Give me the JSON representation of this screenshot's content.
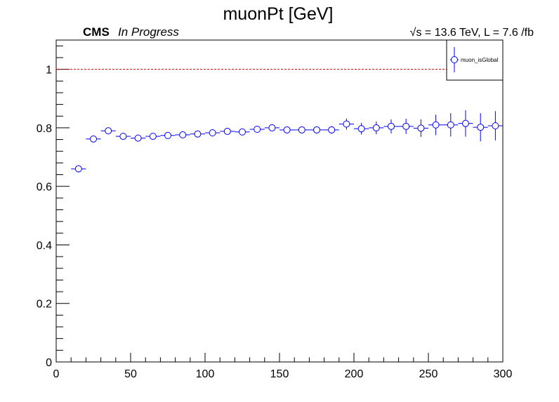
{
  "header": {
    "title": "muonPt [GeV]",
    "experiment": "CMS",
    "status": "In Progress",
    "lumi_sqrt": "√s",
    "lumi_rest": " = 13.6 TeV, L = 7.6 /fb"
  },
  "chart_data": {
    "type": "scatter",
    "title": "muonPt [GeV]",
    "xlabel": "",
    "ylabel": "",
    "xlim": [
      0,
      300
    ],
    "ylim": [
      0,
      1.1
    ],
    "x_ticks": [
      0,
      50,
      100,
      150,
      200,
      250,
      300
    ],
    "y_ticks": [
      0,
      0.2,
      0.4,
      0.6,
      0.8,
      1
    ],
    "y_tick_labels": [
      "0",
      "0.2",
      "0.4",
      "0.6",
      "0.8",
      "1"
    ],
    "grid": false,
    "reference_line": {
      "y": 1.0,
      "color": "#cc0000",
      "style": "dashed"
    },
    "legend_position": "top-right",
    "series": [
      {
        "name": "muon_isGlobal",
        "color": "#0000ff",
        "marker": "open-circle",
        "bin_width": 10,
        "x": [
          15,
          25,
          35,
          45,
          55,
          65,
          75,
          85,
          95,
          105,
          115,
          125,
          135,
          145,
          155,
          165,
          175,
          185,
          195,
          205,
          215,
          225,
          235,
          245,
          255,
          265,
          275,
          285,
          295
        ],
        "y": [
          0.66,
          0.762,
          0.79,
          0.771,
          0.765,
          0.771,
          0.774,
          0.776,
          0.779,
          0.783,
          0.788,
          0.786,
          0.795,
          0.8,
          0.793,
          0.793,
          0.793,
          0.793,
          0.813,
          0.797,
          0.8,
          0.805,
          0.805,
          0.799,
          0.81,
          0.81,
          0.815,
          0.802,
          0.807
        ],
        "yerr": [
          0.003,
          0.004,
          0.004,
          0.005,
          0.005,
          0.006,
          0.006,
          0.006,
          0.007,
          0.007,
          0.008,
          0.008,
          0.009,
          0.009,
          0.01,
          0.011,
          0.012,
          0.013,
          0.019,
          0.02,
          0.022,
          0.024,
          0.026,
          0.03,
          0.035,
          0.04,
          0.045,
          0.048,
          0.05
        ]
      }
    ]
  }
}
